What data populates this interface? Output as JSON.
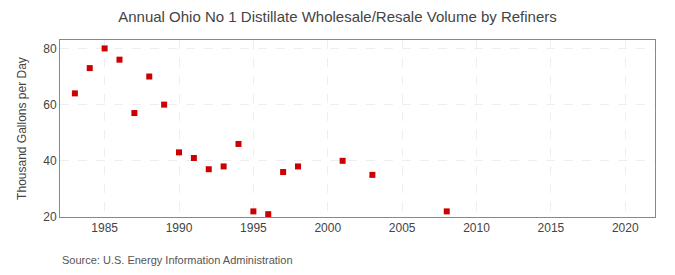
{
  "chart_data": {
    "type": "scatter",
    "title": "Annual Ohio No 1 Distillate Wholesale/Resale Volume by Refiners",
    "ylabel": "Thousand Gallons per Day",
    "annotations": [
      "Source: U.S. Energy Information Administration"
    ],
    "x": [
      1983,
      1984,
      1985,
      1986,
      1987,
      1988,
      1989,
      1990,
      1991,
      1992,
      1993,
      1994,
      1995,
      1996,
      1997,
      1998,
      2001,
      2003,
      2008
    ],
    "values": [
      64,
      73,
      80,
      76,
      57,
      70,
      60,
      43,
      41,
      37,
      38,
      46,
      22,
      21,
      36,
      38,
      40,
      35,
      22
    ],
    "color": "#cc0000",
    "marker": "square",
    "xlim": [
      1982,
      2022
    ],
    "ylim": [
      20,
      83
    ],
    "xticks": [
      1985,
      1990,
      1995,
      2000,
      2005,
      2010,
      2015,
      2020
    ],
    "yticks": [
      20,
      40,
      60,
      80
    ],
    "grid": true
  }
}
